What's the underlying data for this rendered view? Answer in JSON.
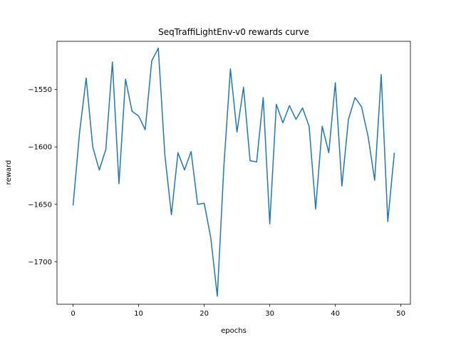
{
  "chart_data": {
    "type": "line",
    "title": "SeqTraffiLightEnv-v0 rewards curve",
    "xlabel": "epochs",
    "ylabel": "reward",
    "xlim": [
      -2.45,
      51.45
    ],
    "ylim": [
      -1737,
      -1508
    ],
    "x_ticks": [
      0,
      10,
      20,
      30,
      40,
      50
    ],
    "y_ticks": [
      -1700,
      -1650,
      -1600,
      -1550
    ],
    "x_tick_labels": [
      "0",
      "10",
      "20",
      "30",
      "40",
      "50"
    ],
    "y_tick_labels": [
      "−1700",
      "−1650",
      "−1600",
      "−1550"
    ],
    "grid": false,
    "series": [
      {
        "color": "#1f77b4",
        "x": [
          0,
          1,
          2,
          3,
          4,
          5,
          6,
          7,
          8,
          9,
          10,
          11,
          12,
          13,
          14,
          15,
          16,
          17,
          18,
          19,
          20,
          21,
          22,
          23,
          24,
          25,
          26,
          27,
          28,
          29,
          30,
          31,
          32,
          33,
          34,
          35,
          36,
          37,
          38,
          39,
          40,
          41,
          42,
          43,
          44,
          45,
          46,
          47,
          48,
          49
        ],
        "y": [
          -1651,
          -1587,
          -1540,
          -1600,
          -1620,
          -1602,
          -1526,
          -1632,
          -1541,
          -1569,
          -1573,
          -1585,
          -1525,
          -1514,
          -1607,
          -1659,
          -1605,
          -1620,
          -1604,
          -1650,
          -1649,
          -1679,
          -1730,
          -1617,
          -1532,
          -1587,
          -1548,
          -1612,
          -1613,
          -1557,
          -1667,
          -1563,
          -1579,
          -1564,
          -1576,
          -1566,
          -1582,
          -1654,
          -1582,
          -1605,
          -1544,
          -1634,
          -1576,
          -1557,
          -1565,
          -1591,
          -1629,
          -1537,
          -1665,
          -1605
        ]
      }
    ]
  }
}
